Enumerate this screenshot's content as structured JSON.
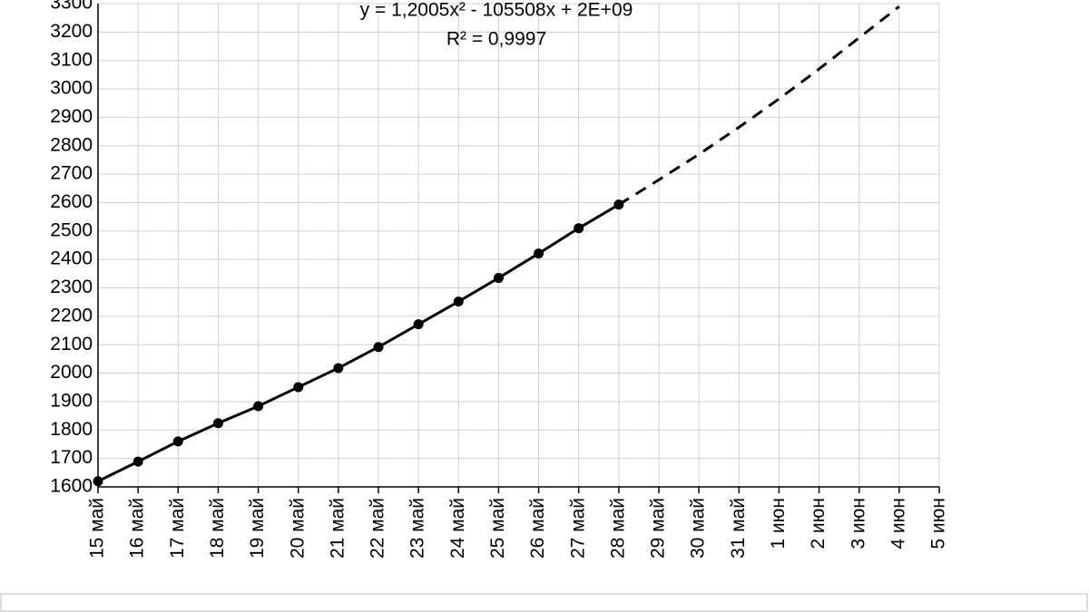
{
  "chart_data": {
    "type": "line",
    "annotations": [
      "y = 1,2005x² - 105508x + 2E+09",
      "R² = 0,9997"
    ],
    "categories": [
      "15 май",
      "16 май",
      "17 май",
      "18 май",
      "19 май",
      "20 май",
      "21 май",
      "22 май",
      "23 май",
      "24 май",
      "25 май",
      "26 май",
      "27 май",
      "28 май",
      "29 май",
      "30 май",
      "31 май",
      "1 июн",
      "2 июн",
      "3 июн",
      "4 июн",
      "5 июн"
    ],
    "series": [
      {
        "color": "#000000",
        "style": "solid",
        "markers": true,
        "values": [
          1620,
          1689,
          1760,
          1824,
          1884,
          1951,
          2018,
          2092,
          2172,
          2252,
          2335,
          2421,
          2510,
          2593,
          null,
          null,
          null,
          null,
          null,
          null,
          null,
          null
        ]
      },
      {
        "color": "#000000",
        "style": "dashed",
        "markers": false,
        "values": [
          null,
          null,
          null,
          null,
          null,
          null,
          null,
          null,
          null,
          null,
          null,
          null,
          null,
          2593,
          2680,
          2770,
          2865,
          2965,
          3070,
          3180,
          3290,
          null
        ]
      }
    ],
    "ylim": [
      1600,
      3300
    ],
    "yticks": [
      1600,
      1700,
      1800,
      1900,
      2000,
      2100,
      2200,
      2300,
      2400,
      2500,
      2600,
      2700,
      2800,
      2900,
      3000,
      3100,
      3200,
      3300
    ],
    "grid": true
  }
}
